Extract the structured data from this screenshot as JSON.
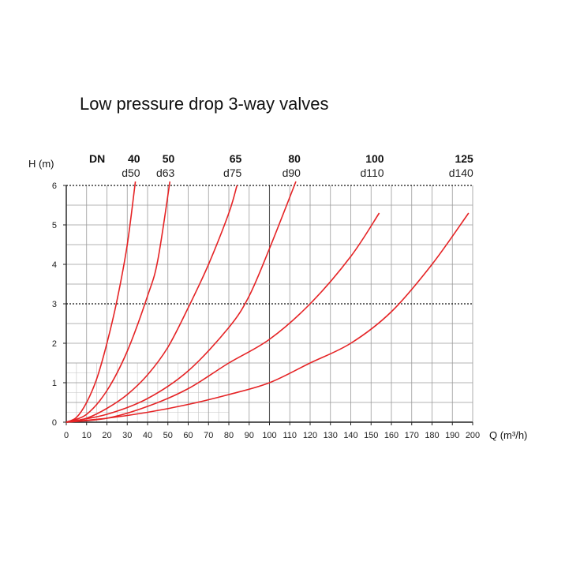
{
  "chart_data": {
    "type": "line",
    "title": "Low pressure drop 3-way valves",
    "xlabel": "Q (m³/h)",
    "ylabel": "H (m)",
    "xlim": [
      0,
      200
    ],
    "ylim": [
      0,
      6
    ],
    "xticks": [
      "0",
      "10",
      "20",
      "30",
      "40",
      "50",
      "60",
      "70",
      "80",
      "90",
      "100",
      "110",
      "120",
      "130",
      "140",
      "150",
      "160",
      "170",
      "180",
      "190",
      "200"
    ],
    "yticks": [
      "0",
      "1",
      "2",
      "3",
      "4",
      "5",
      "6"
    ],
    "dotted_lines_y": [
      3,
      6
    ],
    "grid": true,
    "header_label": "DN",
    "series": [
      {
        "name": "40",
        "subname": "d50",
        "x": [
          0,
          5,
          10,
          15,
          20,
          25,
          30,
          34
        ],
        "y": [
          0,
          0.12,
          0.5,
          1.1,
          2.0,
          3.1,
          4.5,
          6.1
        ]
      },
      {
        "name": "50",
        "subname": "d63",
        "x": [
          0,
          10,
          20,
          30,
          40,
          45,
          51
        ],
        "y": [
          0,
          0.2,
          0.8,
          1.8,
          3.2,
          4.1,
          6.1
        ]
      },
      {
        "name": "65",
        "subname": "d75",
        "x": [
          0,
          10,
          20,
          30,
          40,
          50,
          60,
          70,
          80,
          84
        ],
        "y": [
          0,
          0.1,
          0.35,
          0.7,
          1.2,
          1.9,
          2.9,
          4.0,
          5.3,
          6.0
        ]
      },
      {
        "name": "80",
        "subname": "d90",
        "x": [
          0,
          20,
          40,
          60,
          80,
          90,
          100,
          113
        ],
        "y": [
          0,
          0.2,
          0.6,
          1.3,
          2.4,
          3.2,
          4.4,
          6.1
        ]
      },
      {
        "name": "100",
        "subname": "d110",
        "x": [
          0,
          20,
          40,
          60,
          80,
          100,
          120,
          140,
          154
        ],
        "y": [
          0,
          0.1,
          0.4,
          0.85,
          1.5,
          2.1,
          3.0,
          4.2,
          5.3
        ]
      },
      {
        "name": "125",
        "subname": "d140",
        "x": [
          0,
          20,
          40,
          60,
          80,
          100,
          120,
          140,
          160,
          180,
          198
        ],
        "y": [
          0,
          0.1,
          0.25,
          0.45,
          0.7,
          1.0,
          1.5,
          2.0,
          2.8,
          4.0,
          5.3
        ]
      }
    ],
    "series_color": "#e52325",
    "grid_color": "#9a9a9a",
    "axis_color": "#222222"
  }
}
